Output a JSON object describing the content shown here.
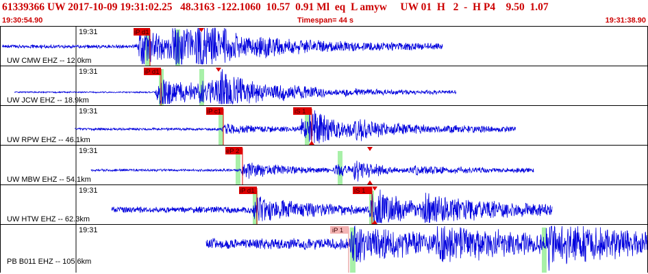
{
  "header": {
    "title": "61339366 UW 2017-10-09 19:31:02.25   48.3163 -122.1060  10.57  0.91 Ml  eq  L amyw     UW 01  H   2  -  H P4    9.50  1.07",
    "start_time": "19:30:54.90",
    "timespan": "Timespan=  44 s",
    "end_time": "19:31:38.90"
  },
  "colors": {
    "trace": "#0000dd",
    "pick_red": "#dd0000",
    "pick_pale": "#f4b4b4",
    "window_green": "#a8f0a8",
    "title_red": "#cc0000"
  },
  "traces": [
    {
      "station": "UW CMW EHZ -- 12.0km",
      "time_label": "19:31",
      "picks": [
        {
          "label": "iP d1",
          "style": "red"
        }
      ]
    },
    {
      "station": "UW JCW EHZ -- 18.9km",
      "time_label": "19:31",
      "picks": [
        {
          "label": "iP d1",
          "style": "red"
        }
      ]
    },
    {
      "station": "UW RPW EHZ -- 46.1km",
      "time_label": "19:31",
      "picks": [
        {
          "label": "iP c1",
          "style": "red"
        },
        {
          "label": "iS 1",
          "style": "red"
        }
      ]
    },
    {
      "station": "UW MBW EHZ -- 54.1km",
      "time_label": "19:31",
      "picks": [
        {
          "label": "eP 2",
          "style": "red"
        }
      ]
    },
    {
      "station": "UW HTW EHZ -- 62.3km",
      "time_label": "19:31",
      "picks": [
        {
          "label": "iP d1",
          "style": "red"
        },
        {
          "label": "iS 1",
          "style": "red"
        }
      ]
    },
    {
      "station": "PB B011 EHZ -- 105.6km",
      "time_label": "19:31",
      "picks": [
        {
          "label": "iP 1",
          "style": "pale"
        }
      ]
    }
  ]
}
